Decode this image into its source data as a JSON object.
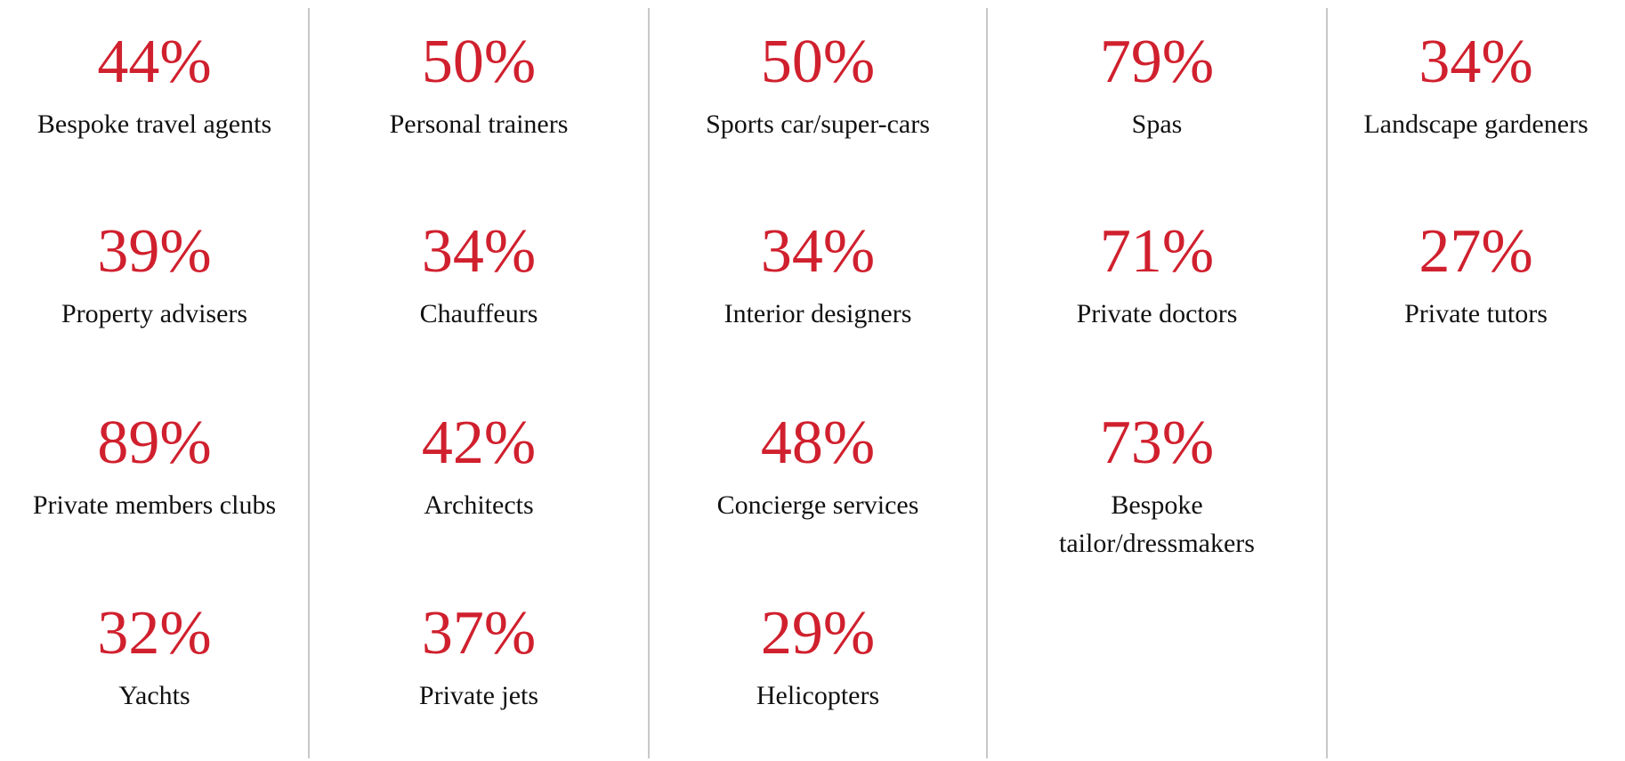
{
  "columns": [
    {
      "items": [
        {
          "value": "44%",
          "label": "Bespoke travel agents"
        },
        {
          "value": "39%",
          "label": "Property advisers"
        },
        {
          "value": "89%",
          "label": "Private members clubs"
        },
        {
          "value": "32%",
          "label": "Yachts"
        }
      ]
    },
    {
      "items": [
        {
          "value": "50%",
          "label": "Personal trainers"
        },
        {
          "value": "34%",
          "label": "Chauffeurs"
        },
        {
          "value": "42%",
          "label": "Architects"
        },
        {
          "value": "37%",
          "label": "Private jets"
        }
      ]
    },
    {
      "items": [
        {
          "value": "50%",
          "label": "Sports car/super-cars"
        },
        {
          "value": "34%",
          "label": "Interior designers"
        },
        {
          "value": "48%",
          "label": "Concierge services"
        },
        {
          "value": "29%",
          "label": "Helicopters"
        }
      ]
    },
    {
      "items": [
        {
          "value": "79%",
          "label": "Spas"
        },
        {
          "value": "71%",
          "label": "Private doctors"
        },
        {
          "value": "73%",
          "label": "Bespoke tailor/dressmakers"
        }
      ]
    },
    {
      "items": [
        {
          "value": "34%",
          "label": "Landscape gardeners"
        },
        {
          "value": "27%",
          "label": "Private tutors"
        }
      ]
    }
  ]
}
